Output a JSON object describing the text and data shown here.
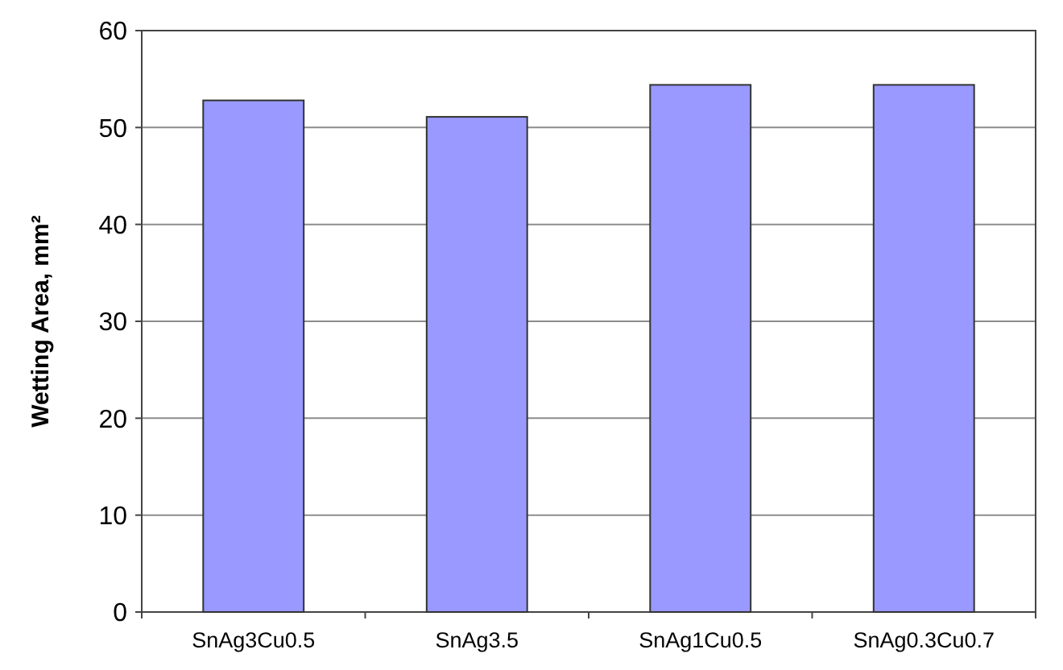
{
  "chart_data": {
    "type": "bar",
    "ylabel": "Wetting Area, mm²",
    "categories": [
      "SnAg3Cu0.5",
      "SnAg3.5",
      "SnAg1Cu0.5",
      "SnAg0.3Cu0.7"
    ],
    "values": [
      52.8,
      51.1,
      54.4,
      54.4
    ],
    "color": "#9999ff",
    "ylim": [
      0,
      60
    ],
    "yticks": [
      0,
      10,
      20,
      30,
      40,
      50,
      60
    ],
    "grid": "y"
  }
}
